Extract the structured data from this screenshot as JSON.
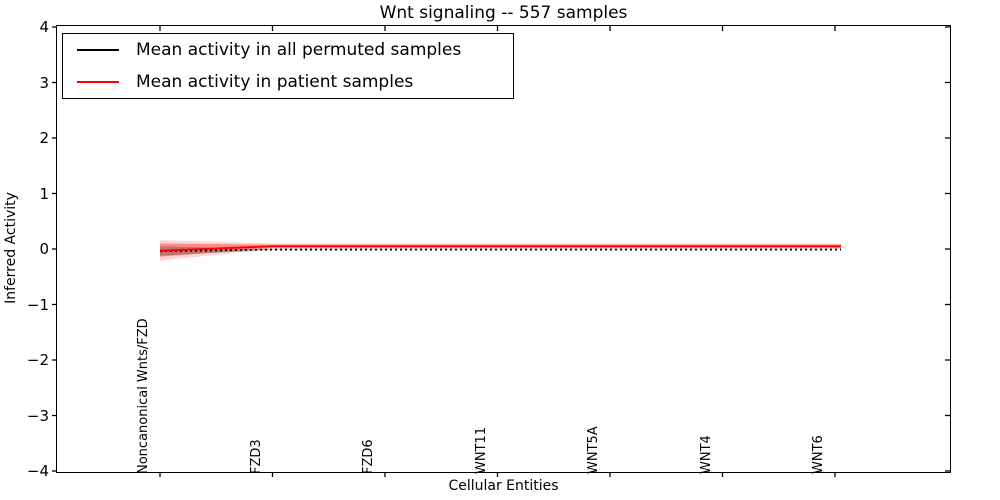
{
  "chart_data": {
    "type": "line",
    "title": "Wnt signaling -- 557 samples",
    "xlabel": "Cellular Entities",
    "ylabel": "Inferred Activity",
    "ylim": [
      -4,
      4
    ],
    "grid": false,
    "legend_position": "upper left",
    "yticks": [
      {
        "value": 4,
        "label": "4"
      },
      {
        "value": 3,
        "label": "3"
      },
      {
        "value": 2,
        "label": "2"
      },
      {
        "value": 1,
        "label": "1"
      },
      {
        "value": 0,
        "label": "0"
      },
      {
        "value": -1,
        "label": "−1"
      },
      {
        "value": -2,
        "label": "−2"
      },
      {
        "value": -3,
        "label": "−3"
      },
      {
        "value": -4,
        "label": "−4"
      }
    ],
    "categories": [
      "Noncanonical Wnts/FZD",
      "FZD3",
      "FZD6",
      "WNT11",
      "WNT5A",
      "WNT4",
      "WNT6"
    ],
    "series": [
      {
        "name": "Mean activity in all permuted samples",
        "color": "#000000",
        "linestyle": "dotted",
        "values": [
          -0.04,
          -0.01,
          -0.01,
          -0.01,
          -0.01,
          -0.01,
          -0.01
        ]
      },
      {
        "name": "Mean activity in patient samples",
        "color": "#ff0000",
        "linestyle": "solid",
        "values": [
          -0.03,
          0.05,
          0.05,
          0.05,
          0.05,
          0.05,
          0.05
        ]
      }
    ],
    "bands": [
      {
        "name": "patient-sample-spread-outer",
        "color": "rgba(255,0,0,0.16)",
        "upper": [
          0.16,
          0.1,
          0.1,
          0.1,
          0.1,
          0.1,
          0.1
        ],
        "lower": [
          -0.21,
          0.0,
          0.0,
          0.0,
          0.0,
          0.0,
          0.0
        ]
      },
      {
        "name": "patient-sample-spread-inner",
        "color": "rgba(255,0,0,0.35)",
        "upper": [
          0.1,
          0.08,
          0.08,
          0.08,
          0.08,
          0.08,
          0.08
        ],
        "lower": [
          -0.14,
          0.02,
          0.02,
          0.02,
          0.02,
          0.02,
          0.02
        ]
      },
      {
        "name": "permuted-sample-spread",
        "color": "rgba(70,70,70,0.35)",
        "upper": [
          0.05,
          -0.005,
          -0.01,
          -0.01,
          -0.01,
          -0.01,
          -0.01
        ],
        "lower": [
          -0.12,
          -0.015,
          -0.01,
          -0.01,
          -0.01,
          -0.01,
          -0.01
        ]
      }
    ]
  }
}
